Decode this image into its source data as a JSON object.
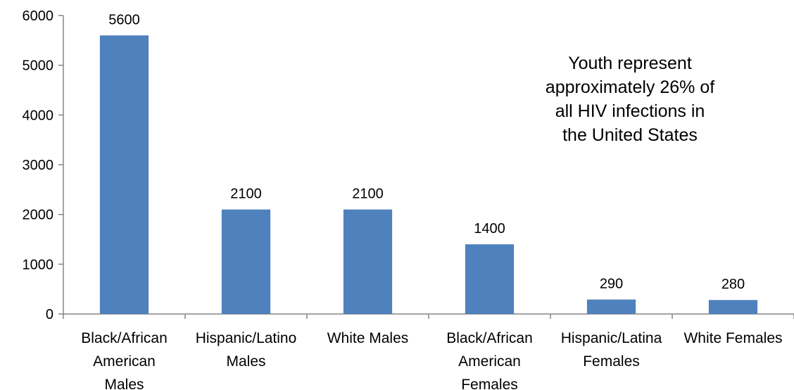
{
  "chart_data": {
    "type": "bar",
    "categories": [
      [
        "Black/African",
        "American",
        "Males"
      ],
      [
        "Hispanic/Latino",
        "Males"
      ],
      [
        "White Males"
      ],
      [
        "Black/African",
        "American",
        "Females"
      ],
      [
        "Hispanic/Latina",
        "Females"
      ],
      [
        "White Females"
      ]
    ],
    "values": [
      5600,
      2100,
      2100,
      1400,
      290,
      280
    ],
    "data_labels": [
      "5600",
      "2100",
      "2100",
      "1400",
      "290",
      "280"
    ],
    "y_ticks": [
      0,
      1000,
      2000,
      3000,
      4000,
      5000,
      6000
    ],
    "ylim": [
      0,
      6000
    ],
    "title": "",
    "xlabel": "",
    "ylabel": "",
    "grid": false,
    "legend": "none",
    "bar_color": "#4F81BD",
    "annotation": [
      "Youth represent",
      "approximately 26% of",
      "all HIV infections in",
      "the United States"
    ]
  }
}
